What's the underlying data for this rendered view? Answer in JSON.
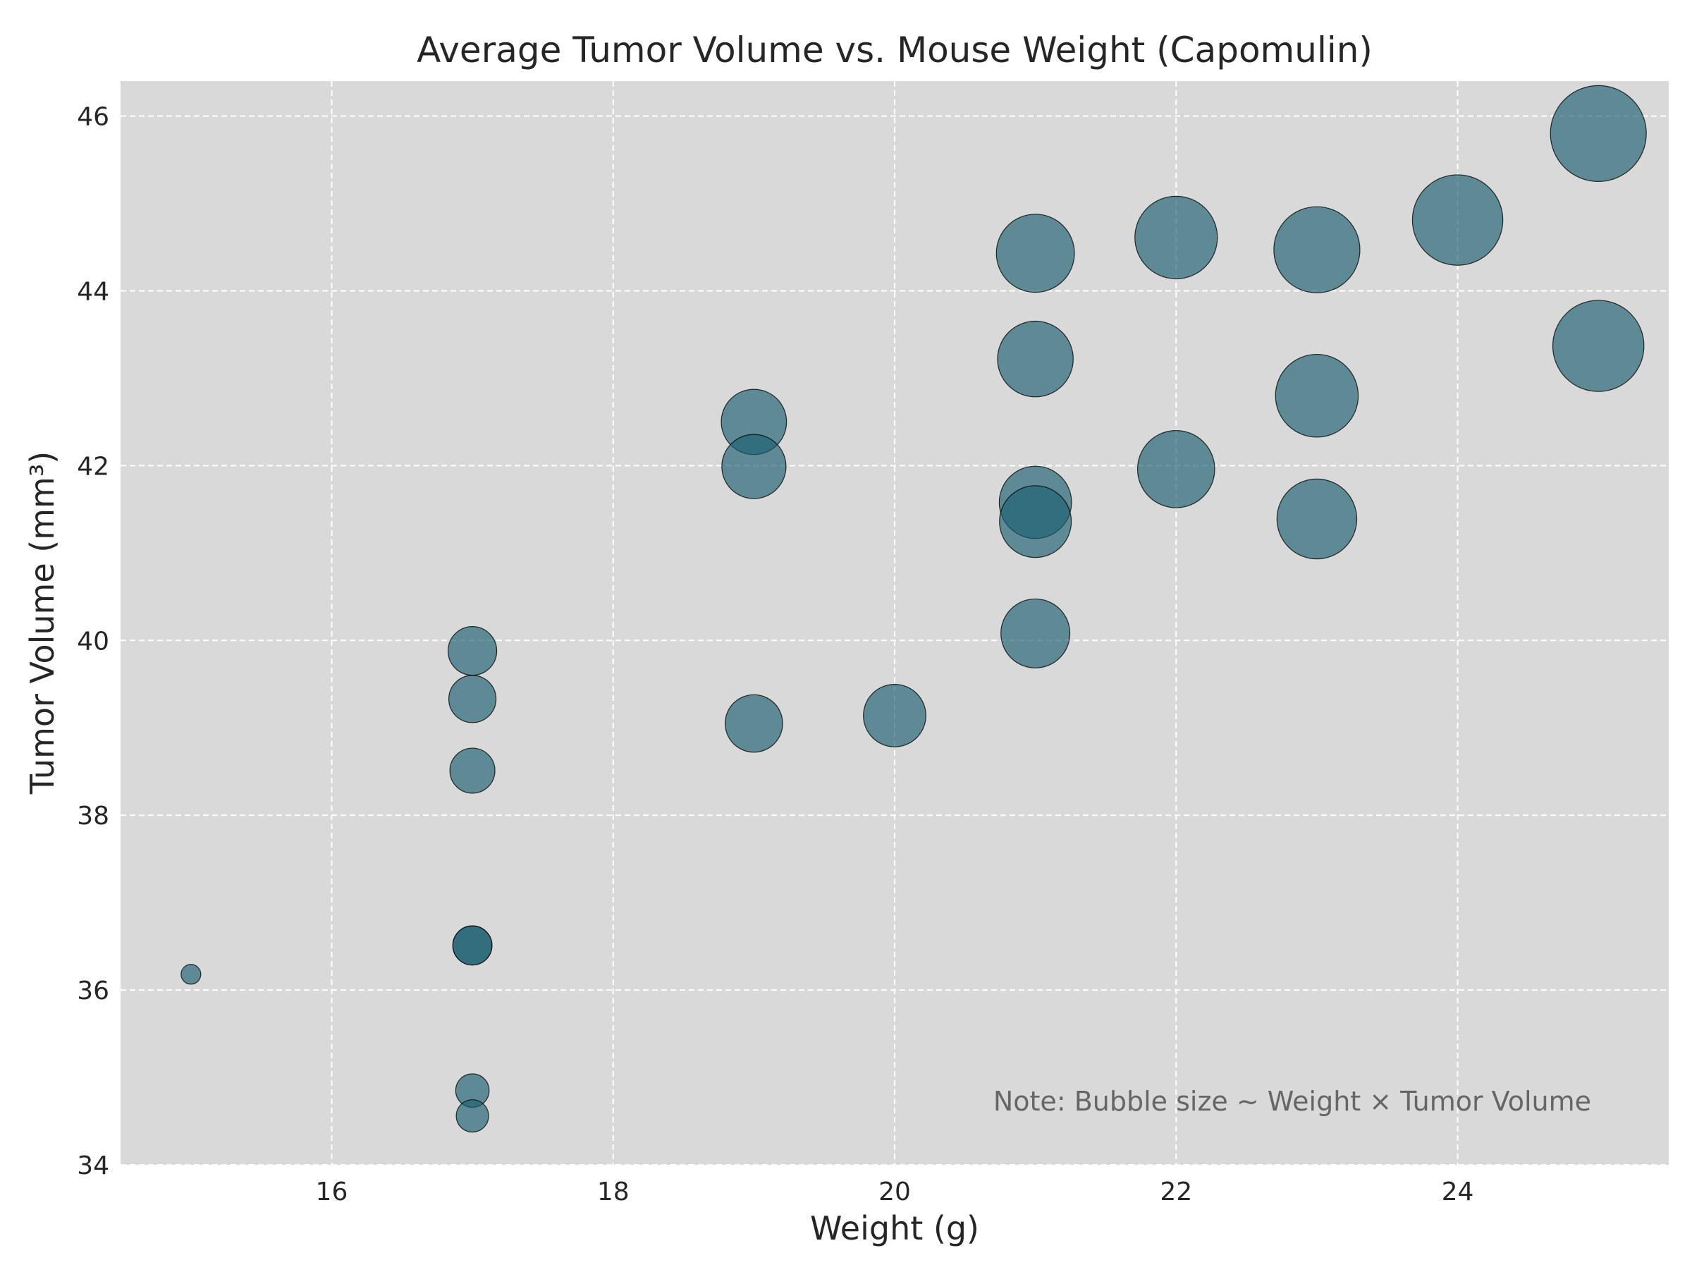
{
  "chart_data": {
    "type": "scatter",
    "title": "Average Tumor Volume vs. Mouse Weight (Capomulin)",
    "xlabel": "Weight (g)",
    "ylabel": "Tumor Volume (mm³)",
    "xlim": [
      14.5,
      25.5
    ],
    "ylim": [
      34.0,
      46.4
    ],
    "xticks": [
      16,
      18,
      20,
      22,
      24
    ],
    "yticks": [
      34,
      36,
      38,
      40,
      42,
      44,
      46
    ],
    "grid": true,
    "annotation": "Note: Bubble size ~ Weight × Tumor Volume",
    "colors": {
      "plot_bg": "#d9d9d9",
      "bubble": "#1b5f72",
      "edge": "#000000",
      "grid": "#ffffff",
      "annotation": "#666666"
    },
    "points": [
      {
        "x": 15,
        "y": 36.18
      },
      {
        "x": 17,
        "y": 34.56
      },
      {
        "x": 17,
        "y": 34.85
      },
      {
        "x": 17,
        "y": 36.51
      },
      {
        "x": 17,
        "y": 36.51
      },
      {
        "x": 17,
        "y": 38.51
      },
      {
        "x": 17,
        "y": 39.33
      },
      {
        "x": 17,
        "y": 39.88
      },
      {
        "x": 19,
        "y": 39.05
      },
      {
        "x": 19,
        "y": 41.99
      },
      {
        "x": 19,
        "y": 42.5
      },
      {
        "x": 20,
        "y": 39.14
      },
      {
        "x": 21,
        "y": 40.08
      },
      {
        "x": 21,
        "y": 41.36
      },
      {
        "x": 21,
        "y": 41.58
      },
      {
        "x": 21,
        "y": 43.22
      },
      {
        "x": 21,
        "y": 44.43
      },
      {
        "x": 22,
        "y": 41.96
      },
      {
        "x": 22,
        "y": 44.61
      },
      {
        "x": 23,
        "y": 41.39
      },
      {
        "x": 23,
        "y": 42.8
      },
      {
        "x": 23,
        "y": 44.47
      },
      {
        "x": 24,
        "y": 44.81
      },
      {
        "x": 25,
        "y": 43.37
      },
      {
        "x": 25,
        "y": 45.8
      }
    ]
  }
}
